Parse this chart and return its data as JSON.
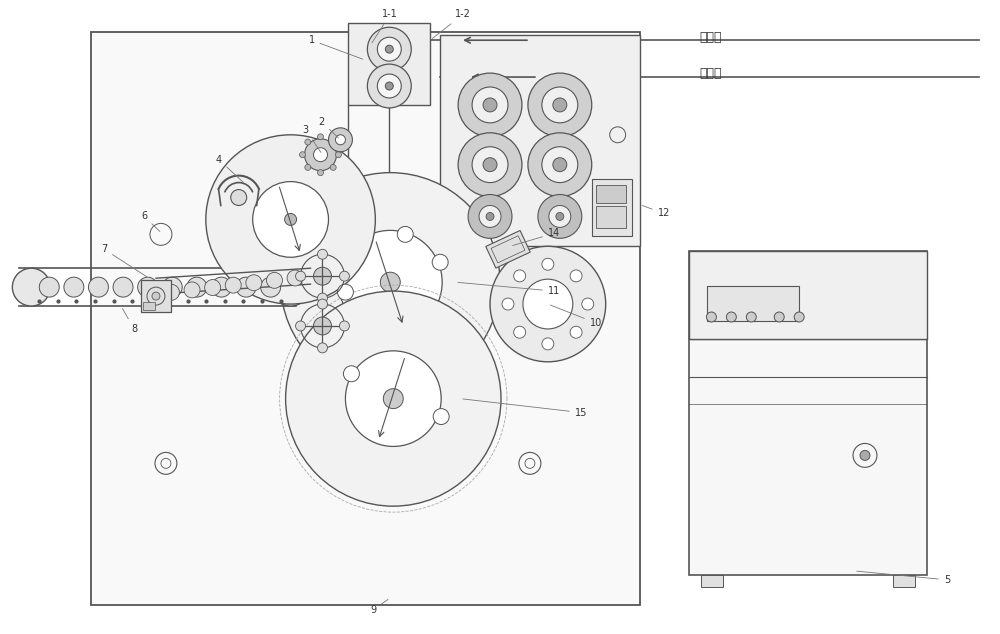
{
  "fig_width": 10.0,
  "fig_height": 6.34,
  "lc": "#555555",
  "lc_light": "#888888",
  "lc_thin": "#999999"
}
